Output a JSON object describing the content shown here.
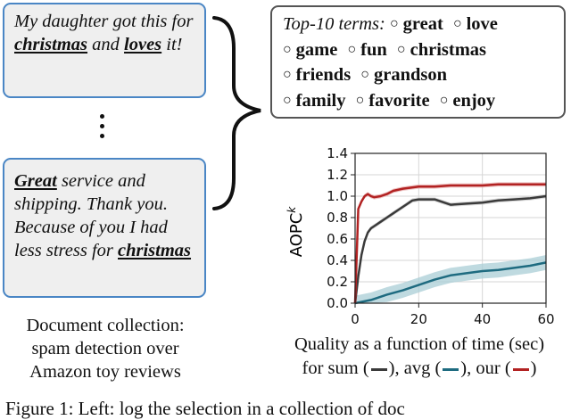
{
  "review_1": {
    "pre1": "My daughter got this for ",
    "kw1": "christmas",
    "mid": " and ",
    "kw2": "loves",
    "post": " it!"
  },
  "review_2": {
    "kw1": "Great",
    "mid": " service and shipping. Thank you. Because of you I had less stress for ",
    "kw2": "christmas"
  },
  "collection_caption": [
    "Document collection:",
    "spam detection over",
    "Amazon toy reviews"
  ],
  "terms": {
    "title": "Top-10 terms:",
    "items": [
      "great",
      "love",
      "game",
      "fun",
      "christmas",
      "friends",
      "grandson",
      "family",
      "favorite",
      "enjoy"
    ]
  },
  "chart_caption": {
    "line1": "Quality as a function of time (sec)",
    "prefix": "for sum (",
    "sep1": "), avg (",
    "sep2": "), our (",
    "suffix": ")"
  },
  "figure_caption": "Figure 1:  Left: log the selection in a collection of doc",
  "colors": {
    "box_border": "#4a86c5",
    "sum": "#3a3a3a",
    "avg": "#1e6b80",
    "our": "#b22222",
    "band_avg": "#a9cdd6",
    "band_our": "#e8b0b0"
  },
  "chart_data": {
    "type": "line",
    "ylabel": "AOPC",
    "ylabel_sup": "k",
    "xlim": [
      0,
      60
    ],
    "ylim": [
      0,
      1.4
    ],
    "xticks": [
      "0",
      "20",
      "40",
      "60"
    ],
    "yticks": [
      "0.0",
      "0.2",
      "0.4",
      "0.6",
      "0.8",
      "1.0",
      "1.2",
      "1.4"
    ],
    "grid": true,
    "series": [
      {
        "key": "sum",
        "x": [
          0,
          1,
          2,
          3,
          4,
          5,
          6,
          8,
          10,
          12,
          14,
          16,
          18,
          20,
          25,
          30,
          35,
          40,
          45,
          50,
          55,
          60
        ],
        "y": [
          0.0,
          0.25,
          0.45,
          0.58,
          0.66,
          0.7,
          0.72,
          0.76,
          0.8,
          0.84,
          0.88,
          0.92,
          0.96,
          0.97,
          0.97,
          0.92,
          0.93,
          0.94,
          0.96,
          0.97,
          0.98,
          1.0
        ],
        "band": 0.02
      },
      {
        "key": "avg",
        "x": [
          0,
          5,
          10,
          15,
          20,
          25,
          30,
          35,
          40,
          45,
          50,
          55,
          60
        ],
        "y": [
          0.0,
          0.03,
          0.08,
          0.12,
          0.17,
          0.22,
          0.26,
          0.28,
          0.3,
          0.31,
          0.33,
          0.35,
          0.38
        ],
        "band": 0.07
      },
      {
        "key": "our",
        "x": [
          0,
          1,
          2,
          3,
          4,
          5,
          6,
          8,
          10,
          12,
          15,
          20,
          25,
          30,
          35,
          40,
          45,
          50,
          55,
          60
        ],
        "y": [
          0.0,
          0.88,
          0.95,
          1.0,
          1.02,
          1.0,
          0.99,
          1.0,
          1.02,
          1.05,
          1.07,
          1.09,
          1.09,
          1.1,
          1.1,
          1.1,
          1.11,
          1.11,
          1.11,
          1.11
        ],
        "band": 0.02
      }
    ]
  }
}
